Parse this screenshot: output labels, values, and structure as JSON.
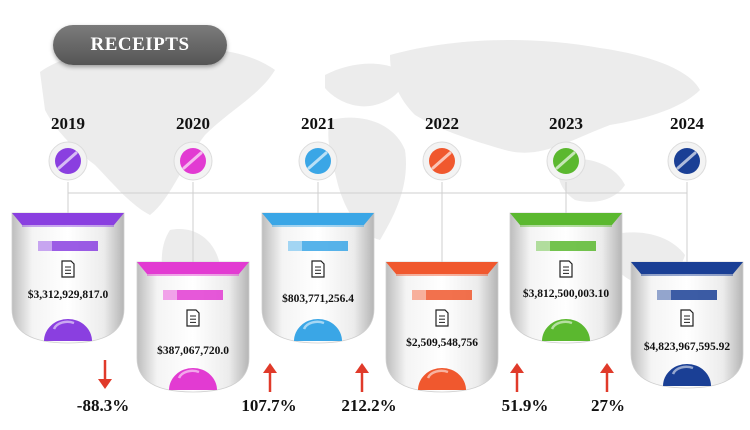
{
  "title": "RECEIPTS",
  "colors": {
    "2019": "#8a3fe0",
    "2020": "#e23bd2",
    "2021": "#3aa6e6",
    "2022": "#f0582e",
    "2023": "#5bb82f",
    "2024": "#1a3f95",
    "arrow": "#e03a2a"
  },
  "icons": {
    "card_icon": "document-icon",
    "change_up": "arrow-up-icon",
    "change_down": "arrow-down-icon"
  },
  "chart_data": {
    "type": "table",
    "title": "RECEIPTS",
    "categories": [
      "2019",
      "2020",
      "2021",
      "2022",
      "2023",
      "2024"
    ],
    "values": [
      3312929817.0,
      387067720.0,
      803771256.4,
      2509548756,
      3812500003.1,
      4823967595.92
    ],
    "value_labels": [
      "$3,312,929,817.0",
      "$387,067,720.0",
      "$803,771,256.4",
      "$2,509,548,756",
      "$3,812,500,003.10",
      "$4,823,967,595.92"
    ],
    "changes": [
      {
        "label": "-88.3%",
        "direction": "down"
      },
      {
        "label": "107.7%",
        "direction": "up"
      },
      {
        "label": "212.2%",
        "direction": "up"
      },
      {
        "label": "51.9%",
        "direction": "up"
      },
      {
        "label": "27%",
        "direction": "up"
      }
    ]
  }
}
